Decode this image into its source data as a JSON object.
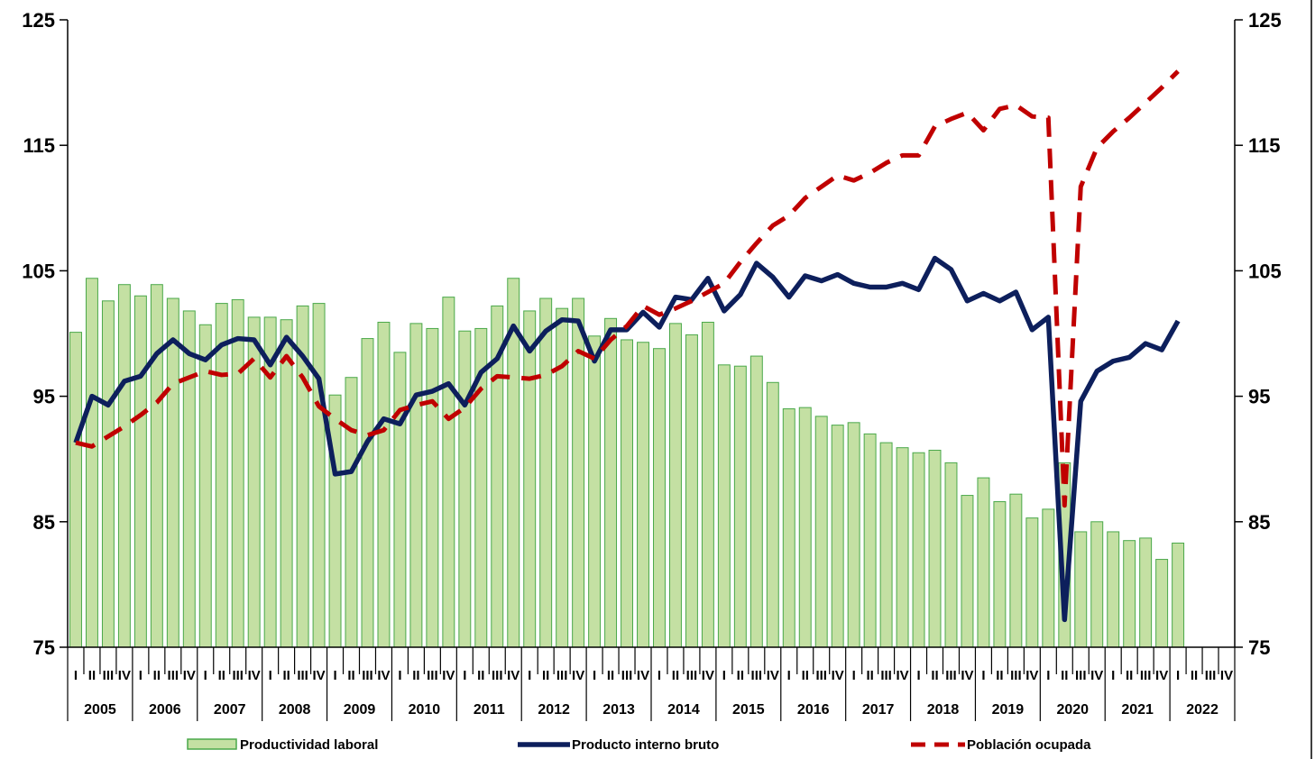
{
  "chart_data": {
    "type": "bar",
    "quarter_labels": [
      "I",
      "II",
      "III",
      "IV"
    ],
    "years": [
      "2005",
      "2006",
      "2007",
      "2008",
      "2009",
      "2010",
      "2011",
      "2012",
      "2013",
      "2014",
      "2015",
      "2016",
      "2017",
      "2018",
      "2019",
      "2020",
      "2021",
      "2022"
    ],
    "ylim": [
      75,
      125
    ],
    "yticks": [
      75,
      85,
      95,
      105,
      115,
      125
    ],
    "legend_position": "bottom",
    "series": [
      {
        "name": "Productividad laboral",
        "kind": "bar",
        "color": "#c4e0a3",
        "border": "#4aa84a",
        "values": [
          100.1,
          104.4,
          102.6,
          103.9,
          103.0,
          103.9,
          102.8,
          101.8,
          100.7,
          102.4,
          102.7,
          101.3,
          101.3,
          101.1,
          102.2,
          102.4,
          95.1,
          96.5,
          99.6,
          100.9,
          98.5,
          100.8,
          100.4,
          102.9,
          100.2,
          100.4,
          102.2,
          104.4,
          101.8,
          102.8,
          102.0,
          102.8,
          99.8,
          101.2,
          99.5,
          99.3,
          98.8,
          100.8,
          99.9,
          100.9,
          97.5,
          97.4,
          98.2,
          96.1,
          94.0,
          94.1,
          93.4,
          92.7,
          92.9,
          92.0,
          91.3,
          90.9,
          90.5,
          90.7,
          89.7,
          87.1,
          88.5,
          86.6,
          87.2,
          85.3,
          86.0,
          89.7,
          84.2,
          85.0,
          84.2,
          83.5,
          83.7,
          82.0,
          83.3
        ]
      },
      {
        "name": "Producto interno bruto",
        "kind": "line",
        "color": "#0d1f5c",
        "values": [
          91.3,
          95.0,
          94.3,
          96.2,
          96.6,
          98.4,
          99.5,
          98.4,
          97.9,
          99.1,
          99.6,
          99.5,
          97.5,
          99.7,
          98.2,
          96.4,
          88.8,
          89.0,
          91.4,
          93.2,
          92.8,
          95.1,
          95.4,
          96.0,
          94.3,
          96.9,
          98.0,
          100.6,
          98.6,
          100.2,
          101.1,
          101.0,
          97.8,
          100.3,
          100.3,
          101.7,
          100.5,
          102.9,
          102.7,
          104.4,
          101.8,
          103.1,
          105.6,
          104.5,
          102.9,
          104.6,
          104.2,
          104.7,
          104.0,
          103.7,
          103.7,
          104.0,
          103.5,
          106.0,
          105.1,
          102.6,
          103.2,
          102.6,
          103.3,
          100.3,
          101.3,
          77.2,
          94.6,
          97.0,
          97.8,
          98.1,
          99.2,
          98.7,
          101.0
        ]
      },
      {
        "name": "Población ocupada",
        "kind": "dashed-line",
        "color": "#c00000",
        "values": [
          91.3,
          91.0,
          91.8,
          92.6,
          93.5,
          94.5,
          96.0,
          96.5,
          97.0,
          96.7,
          96.8,
          98.0,
          96.5,
          98.2,
          96.5,
          94.2,
          93.2,
          92.3,
          91.9,
          92.3,
          93.9,
          94.3,
          94.6,
          93.2,
          94.1,
          95.6,
          96.6,
          96.5,
          96.4,
          96.7,
          97.4,
          98.6,
          98.0,
          99.5,
          100.6,
          102.2,
          101.5,
          102.0,
          102.6,
          103.3,
          104.0,
          105.7,
          107.2,
          108.6,
          109.4,
          110.8,
          111.7,
          112.6,
          112.2,
          112.8,
          113.6,
          114.2,
          114.2,
          116.5,
          117.1,
          117.6,
          116.2,
          117.9,
          118.2,
          117.3,
          117.2,
          86.3,
          111.7,
          114.8,
          116.1,
          117.2,
          118.4,
          119.6,
          120.9
        ]
      }
    ]
  }
}
